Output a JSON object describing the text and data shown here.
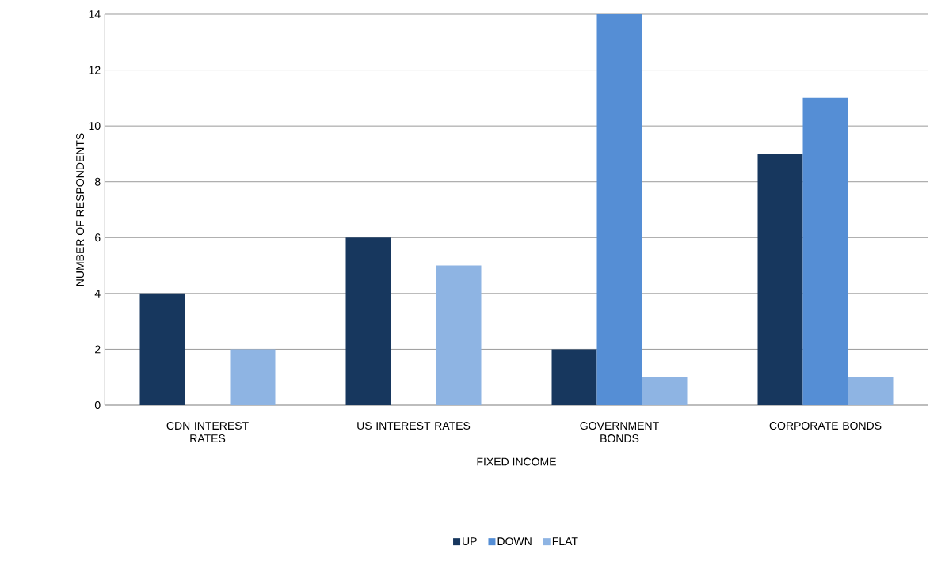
{
  "chart_data": {
    "type": "bar",
    "xlabel": "FIXED INCOME",
    "ylabel": "NUMBER OF RESPONDENTS",
    "categories": [
      "CDN INTEREST RATES",
      "US INTEREST RATES",
      "GOVERNMENT BONDS",
      "CORPORATE BONDS"
    ],
    "series": [
      {
        "name": "UP",
        "color": "#17375e",
        "values": [
          4,
          6,
          2,
          9
        ]
      },
      {
        "name": "DOWN",
        "color": "#558ed5",
        "values": [
          0,
          0,
          14,
          11
        ]
      },
      {
        "name": "FLAT",
        "color": "#8eb4e3",
        "values": [
          2,
          5,
          1,
          1
        ]
      }
    ],
    "ylim": [
      0,
      14
    ],
    "yticks": [
      0,
      2,
      4,
      6,
      8,
      10,
      12,
      14
    ],
    "grid": "y",
    "legend": "bottom"
  }
}
